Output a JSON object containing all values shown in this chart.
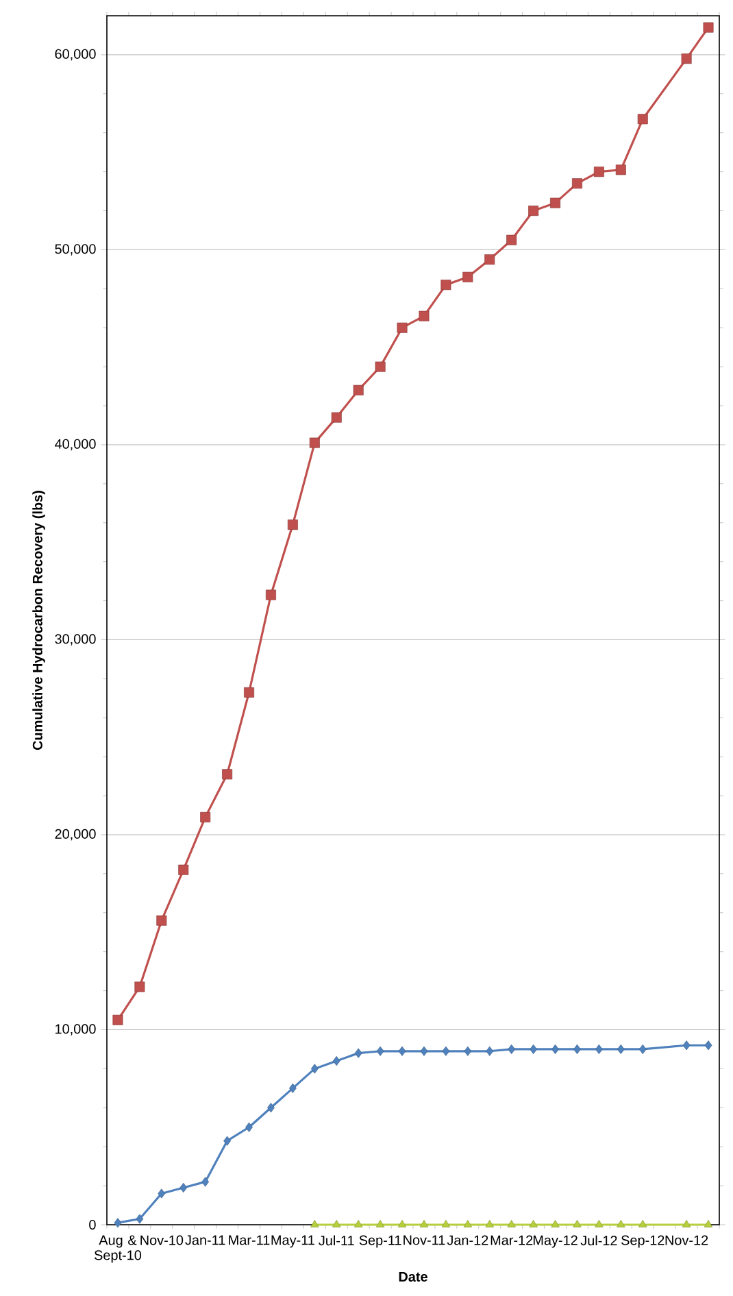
{
  "chart_data": {
    "type": "line",
    "xlabel": "Date",
    "ylabel": "Cumulative Hydrocarbon Recovery (lbs)",
    "categories": [
      "Aug & Sept-10",
      null,
      "Nov-10",
      null,
      "Jan-11",
      null,
      "Mar-11",
      null,
      "May-11",
      null,
      "Jul-11",
      null,
      "Sep-11",
      null,
      "Nov-11",
      null,
      "Jan-12",
      null,
      "Mar-12",
      null,
      "May-12",
      null,
      "Jul-12",
      null,
      "Sep-12",
      null,
      "Nov-12",
      null
    ],
    "series": [
      {
        "color": "#c0504d",
        "marker": "square",
        "values": [
          10500,
          12200,
          15600,
          18200,
          20900,
          23100,
          27300,
          32300,
          35900,
          40100,
          41400,
          42800,
          44000,
          46000,
          46600,
          48200,
          48600,
          49500,
          50500,
          52000,
          52400,
          53400,
          54000,
          54100,
          56700,
          null,
          59800,
          61400
        ]
      },
      {
        "color": "#4f81bd",
        "marker": "diamond",
        "values": [
          100,
          300,
          1600,
          1900,
          2200,
          4300,
          5000,
          6000,
          7000,
          8000,
          8400,
          8800,
          8900,
          8900,
          8900,
          8900,
          8900,
          8900,
          9000,
          9000,
          9000,
          9000,
          9000,
          9000,
          9000,
          null,
          9200,
          9200
        ]
      },
      {
        "color": "#b5cf3d",
        "marker": "triangle",
        "values": [
          null,
          null,
          null,
          null,
          null,
          null,
          null,
          null,
          null,
          0,
          0,
          0,
          0,
          0,
          0,
          0,
          0,
          0,
          0,
          0,
          0,
          0,
          0,
          0,
          0,
          null,
          0,
          0
        ]
      }
    ],
    "ylim": [
      0,
      62000
    ],
    "yticks": [
      {
        "value": 0,
        "label": "0"
      },
      {
        "value": 10000,
        "label": "10,000"
      },
      {
        "value": 20000,
        "label": "20,000"
      },
      {
        "value": 30000,
        "label": "30,000"
      },
      {
        "value": 40000,
        "label": "40,000"
      },
      {
        "value": 50000,
        "label": "50,000"
      },
      {
        "value": 60000,
        "label": "60,000"
      }
    ],
    "grid": "y"
  }
}
